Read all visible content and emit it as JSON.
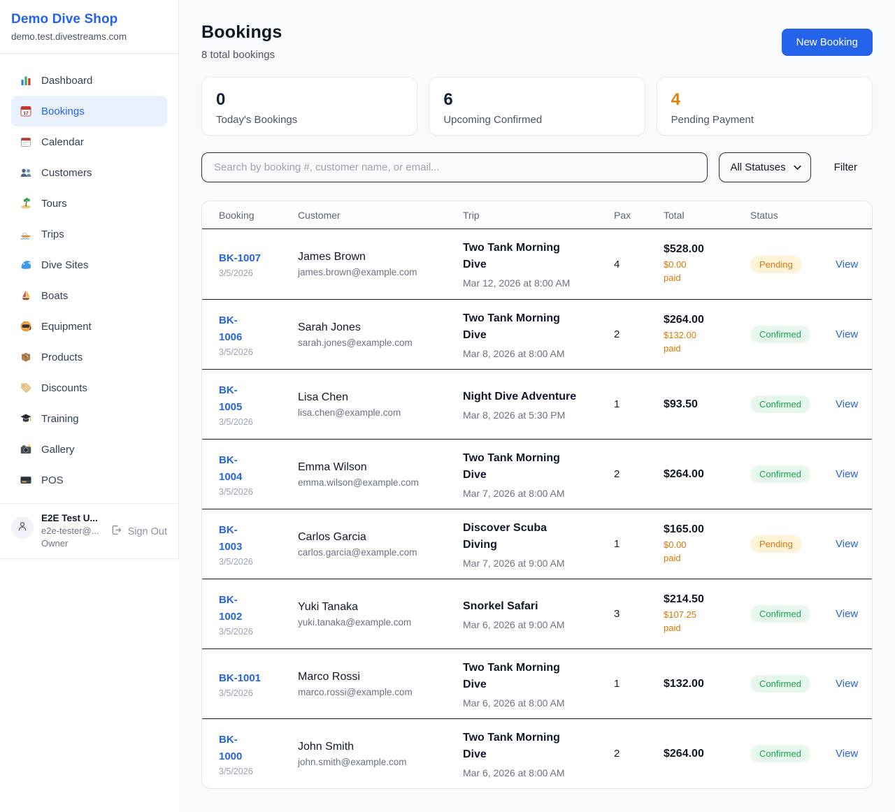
{
  "sidebar": {
    "brand": "Demo Dive Shop",
    "domain": "demo.test.divestreams.com",
    "items": [
      {
        "icon": "bar-chart",
        "label": "Dashboard",
        "active": false
      },
      {
        "icon": "calendar-17",
        "label": "Bookings",
        "active": true
      },
      {
        "icon": "calendar",
        "label": "Calendar",
        "active": false
      },
      {
        "icon": "customers",
        "label": "Customers",
        "active": false
      },
      {
        "icon": "island",
        "label": "Tours",
        "active": false
      },
      {
        "icon": "speedboat",
        "label": "Trips",
        "active": false
      },
      {
        "icon": "wave",
        "label": "Dive Sites",
        "active": false
      },
      {
        "icon": "sailboat",
        "label": "Boats",
        "active": false
      },
      {
        "icon": "dive-mask",
        "label": "Equipment",
        "active": false
      },
      {
        "icon": "package",
        "label": "Products",
        "active": false
      },
      {
        "icon": "tag",
        "label": "Discounts",
        "active": false
      },
      {
        "icon": "graduation-cap",
        "label": "Training",
        "active": false
      },
      {
        "icon": "camera",
        "label": "Gallery",
        "active": false
      },
      {
        "icon": "credit-card",
        "label": "POS",
        "active": false
      }
    ],
    "user": {
      "name": "E2E Test U...",
      "email": "e2e-tester@...",
      "role": "Owner",
      "signout_label": "Sign Out"
    }
  },
  "header": {
    "title": "Bookings",
    "subtitle": "8 total bookings",
    "new_booking_label": "New Booking"
  },
  "stats": [
    {
      "value": "0",
      "label": "Today's Bookings"
    },
    {
      "value": "6",
      "label": "Upcoming Confirmed"
    },
    {
      "value": "4",
      "label": "Pending Payment"
    }
  ],
  "filters": {
    "search_placeholder": "Search by booking #, customer name, or email...",
    "status_select": "All Statuses",
    "filter_label": "Filter"
  },
  "table": {
    "columns": [
      "Booking",
      "Customer",
      "Trip",
      "Pax",
      "Total",
      "Status"
    ],
    "view_label": "View",
    "rows": [
      {
        "id": "BK-1007",
        "date": "3/5/2026",
        "name": "James Brown",
        "email": "james.brown@example.com",
        "trip": "Two Tank Morning\nDive",
        "trip_date": "Mar 12, 2026 at 8:00 AM",
        "pax": "4",
        "total": "$528.00",
        "paid": "$0.00 paid",
        "status": "Pending"
      },
      {
        "id": "BK-\n1006",
        "date": "3/5/2026",
        "name": "Sarah Jones",
        "email": "sarah.jones@example.com",
        "trip": "Two Tank Morning\nDive",
        "trip_date": "Mar 8, 2026 at 8:00 AM",
        "pax": "2",
        "total": "$264.00",
        "paid": "$132.00 paid",
        "status": "Confirmed"
      },
      {
        "id": "BK-\n1005",
        "date": "3/5/2026",
        "name": "Lisa Chen",
        "email": "lisa.chen@example.com",
        "trip": "Night Dive Adventure",
        "trip_date": "Mar 8, 2026 at 5:30 PM",
        "pax": "1",
        "total": "$93.50",
        "paid": "",
        "status": "Confirmed"
      },
      {
        "id": "BK-\n1004",
        "date": "3/5/2026",
        "name": "Emma Wilson",
        "email": "emma.wilson@example.com",
        "trip": "Two Tank Morning\nDive",
        "trip_date": "Mar 7, 2026 at 8:00 AM",
        "pax": "2",
        "total": "$264.00",
        "paid": "",
        "status": "Confirmed"
      },
      {
        "id": "BK-\n1003",
        "date": "3/5/2026",
        "name": "Carlos Garcia",
        "email": "carlos.garcia@example.com",
        "trip": "Discover Scuba\nDiving",
        "trip_date": "Mar 7, 2026 at 9:00 AM",
        "pax": "1",
        "total": "$165.00",
        "paid": "$0.00 paid",
        "status": "Pending"
      },
      {
        "id": "BK-\n1002",
        "date": "3/5/2026",
        "name": "Yuki Tanaka",
        "email": "yuki.tanaka@example.com",
        "trip": "Snorkel Safari",
        "trip_date": "Mar 6, 2026 at 9:00 AM",
        "pax": "3",
        "total": "$214.50",
        "paid": "$107.25 paid",
        "status": "Confirmed"
      },
      {
        "id": "BK-1001",
        "date": "3/5/2026",
        "name": "Marco Rossi",
        "email": "marco.rossi@example.com",
        "trip": "Two Tank Morning\nDive",
        "trip_date": "Mar 6, 2026 at 8:00 AM",
        "pax": "1",
        "total": "$132.00",
        "paid": "",
        "status": "Confirmed"
      },
      {
        "id": "BK-\n1000",
        "date": "3/5/2026",
        "name": "John Smith",
        "email": "john.smith@example.com",
        "trip": "Two Tank Morning\nDive",
        "trip_date": "Mar 6, 2026 at 8:00 AM",
        "pax": "2",
        "total": "$264.00",
        "paid": "",
        "status": "Confirmed"
      }
    ]
  },
  "colors": {
    "accent_blue": "#2563eb",
    "pending_orange": "#d97706",
    "confirmed_green": "#16a34a",
    "page_background": "#f8fafc"
  }
}
